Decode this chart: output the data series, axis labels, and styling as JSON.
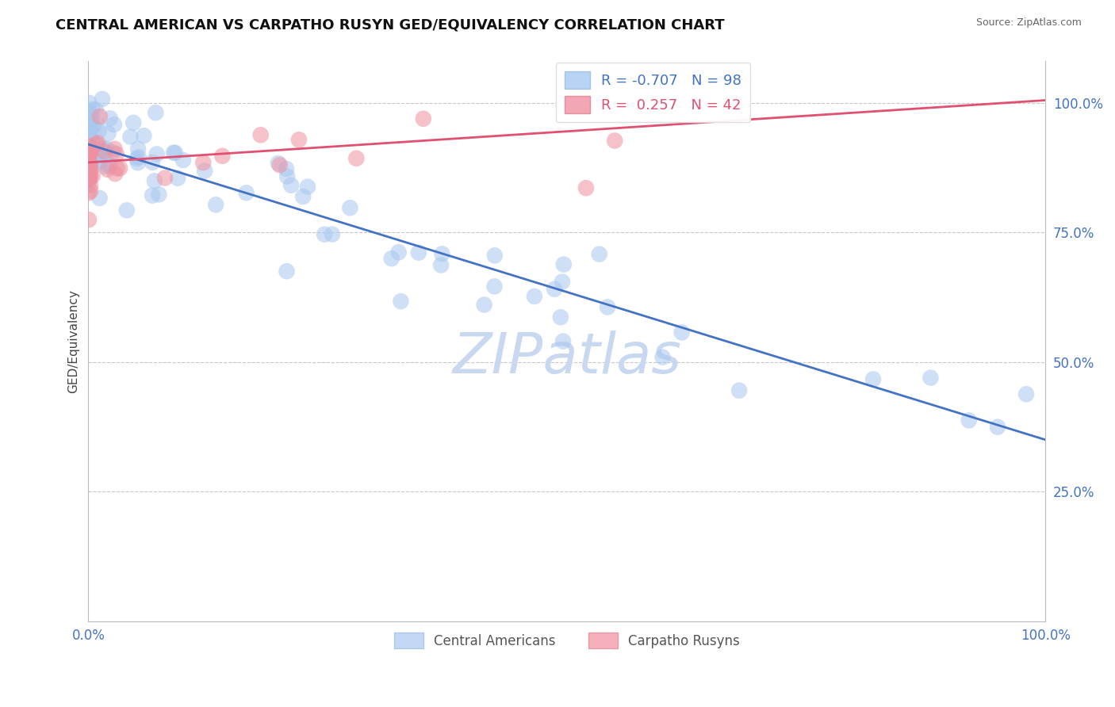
{
  "title": "CENTRAL AMERICAN VS CARPATHO RUSYN GED/EQUIVALENCY CORRELATION CHART",
  "source": "Source: ZipAtlas.com",
  "ylabel": "GED/Equivalency",
  "xlim": [
    0.0,
    1.0
  ],
  "ylim": [
    0.0,
    1.08
  ],
  "xticks": [
    0.0,
    1.0
  ],
  "xticklabels": [
    "0.0%",
    "100.0%"
  ],
  "yticks_right": [
    0.25,
    0.5,
    0.75,
    1.0
  ],
  "ytick_labels_right": [
    "25.0%",
    "50.0%",
    "75.0%",
    "100.0%"
  ],
  "blue_color": "#A8C8F0",
  "pink_color": "#F090A0",
  "blue_line_color": "#4472C4",
  "pink_line_color": "#E05070",
  "R_blue": -0.707,
  "N_blue": 98,
  "R_pink": 0.257,
  "N_pink": 42,
  "background_color": "#FFFFFF",
  "grid_color": "#C8C8C8",
  "title_fontsize": 13,
  "axis_label_color": "#4472C4",
  "watermark_color": "#C8D8F0",
  "watermark_fontsize": 52
}
